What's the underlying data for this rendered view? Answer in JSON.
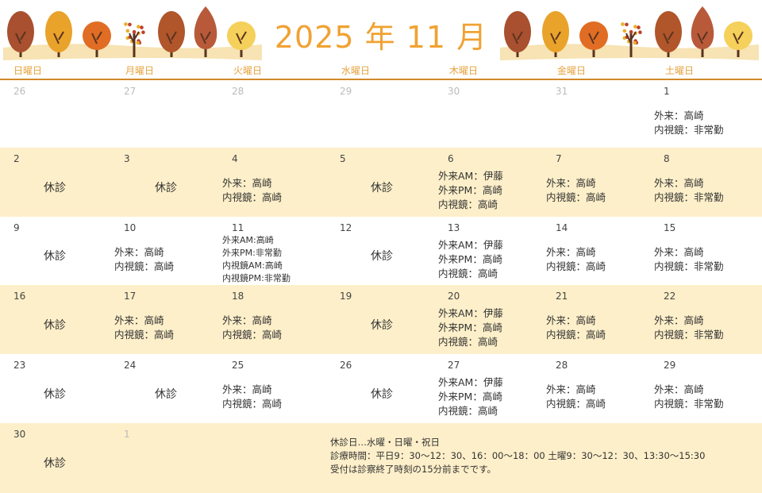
{
  "title": "2025 年 11 月",
  "weekdays": [
    "日曜日",
    "月曜日",
    "火曜日",
    "水曜日",
    "木曜日",
    "金曜日",
    "土曜日"
  ],
  "closed_label": "休診",
  "colors": {
    "accent": "#f0a232",
    "cream": "#fdefc9",
    "rule": "#d08a2a"
  },
  "weeks": [
    [
      {
        "day": "26",
        "muted": true
      },
      {
        "day": "27",
        "muted": true
      },
      {
        "day": "28",
        "muted": true
      },
      {
        "day": "29",
        "muted": true
      },
      {
        "day": "30",
        "muted": true
      },
      {
        "day": "31",
        "muted": true
      },
      {
        "day": "1",
        "lines": [
          "外来：高崎",
          "内視鏡：非常勤"
        ]
      }
    ],
    [
      {
        "day": "2",
        "closed": true
      },
      {
        "day": "3",
        "closed": true
      },
      {
        "day": "4",
        "lines": [
          "外来：高崎",
          "内視鏡：高崎"
        ]
      },
      {
        "day": "5",
        "closed": true
      },
      {
        "day": "6",
        "lines": [
          "外来AM：伊藤",
          "外来PM：高崎",
          "内視鏡：高崎"
        ]
      },
      {
        "day": "7",
        "lines": [
          "外来：高崎",
          "内視鏡：高崎"
        ]
      },
      {
        "day": "8",
        "lines": [
          "外来：高崎",
          "内視鏡：非常勤"
        ]
      }
    ],
    [
      {
        "day": "9",
        "closed": true
      },
      {
        "day": "10",
        "lines": [
          "外来：高崎",
          "内視鏡：高崎"
        ]
      },
      {
        "day": "11",
        "small": true,
        "lines": [
          "外来AM:高崎",
          "外来PM:非常勤",
          "内視鏡AM:高崎",
          "内視鏡PM:非常勤"
        ]
      },
      {
        "day": "12",
        "closed": true
      },
      {
        "day": "13",
        "lines": [
          "外来AM：伊藤",
          "外来PM：高崎",
          "内視鏡：高崎"
        ]
      },
      {
        "day": "14",
        "lines": [
          "外来：高崎",
          "内視鏡：高崎"
        ]
      },
      {
        "day": "15",
        "lines": [
          "外来：高崎",
          "内視鏡：非常勤"
        ]
      }
    ],
    [
      {
        "day": "16",
        "closed": true
      },
      {
        "day": "17",
        "lines": [
          "外来：高崎",
          "内視鏡：高崎"
        ]
      },
      {
        "day": "18",
        "lines": [
          "外来：高崎",
          "内視鏡：高崎"
        ]
      },
      {
        "day": "19",
        "closed": true
      },
      {
        "day": "20",
        "lines": [
          "外来AM：伊藤",
          "外来PM：高崎",
          "内視鏡：高崎"
        ]
      },
      {
        "day": "21",
        "lines": [
          "外来：高崎",
          "内視鏡：高崎"
        ]
      },
      {
        "day": "22",
        "lines": [
          "外来：高崎",
          "内視鏡：非常勤"
        ]
      }
    ],
    [
      {
        "day": "23",
        "closed": true
      },
      {
        "day": "24",
        "closed": true
      },
      {
        "day": "25",
        "lines": [
          "外来：高崎",
          "内視鏡：高崎"
        ]
      },
      {
        "day": "26",
        "closed": true
      },
      {
        "day": "27",
        "lines": [
          "外来AM：伊藤",
          "外来PM：高崎",
          "内視鏡：高崎"
        ]
      },
      {
        "day": "28",
        "lines": [
          "外来：高崎",
          "内視鏡：高崎"
        ]
      },
      {
        "day": "29",
        "lines": [
          "外来：高崎",
          "内視鏡：非常勤"
        ]
      }
    ],
    [
      {
        "day": "30",
        "closed": true
      },
      {
        "day": "1",
        "muted": true
      }
    ]
  ],
  "footer": [
    "休診日…水曜・日曜・祝日",
    "診療時間：平日9：30～12：30、16：00～18：00  土曜9：30～12：30、13:30～15:30",
    "受付は診察終了時刻の15分前までです。"
  ]
}
